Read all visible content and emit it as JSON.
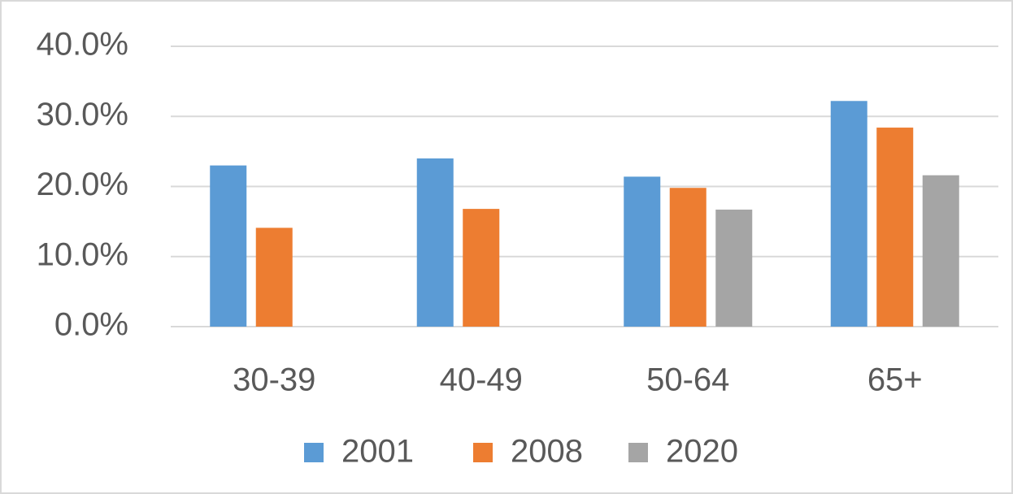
{
  "chart_data": {
    "type": "bar",
    "categories": [
      "30-39",
      "40-49",
      "50-64",
      "65+"
    ],
    "series": [
      {
        "name": "2001",
        "color": "#5b9bd5",
        "values": [
          23.0,
          24.0,
          21.4,
          32.2
        ]
      },
      {
        "name": "2008",
        "color": "#ed7d31",
        "values": [
          14.1,
          16.8,
          19.8,
          28.4
        ]
      },
      {
        "name": "2020",
        "color": "#a5a5a5",
        "values": [
          null,
          null,
          16.7,
          21.6
        ]
      }
    ],
    "ylim": [
      0,
      40
    ],
    "yticks": [
      {
        "value": 0,
        "label": "0.0%"
      },
      {
        "value": 10,
        "label": "10.0%"
      },
      {
        "value": 20,
        "label": "20.0%"
      },
      {
        "value": 30,
        "label": "30.0%"
      },
      {
        "value": 40,
        "label": "40.0%"
      }
    ],
    "grid": true,
    "legend": "bottom"
  }
}
